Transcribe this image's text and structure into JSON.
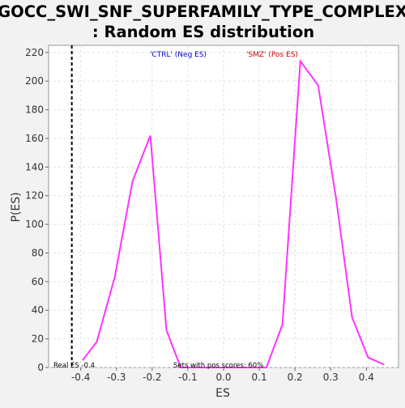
{
  "chart_data": {
    "type": "line",
    "title": "GOCC_SWI_SNF_SUPERFAMILY_TYPE_COMPLEX",
    "subtitle": ": Random ES distribution",
    "xlabel": "ES",
    "ylabel": "P(ES)",
    "xlim": [
      -0.49,
      0.49
    ],
    "ylim": [
      0,
      225
    ],
    "x_ticks": [
      -0.4,
      -0.3,
      -0.2,
      -0.1,
      0.0,
      0.1,
      0.2,
      0.3,
      0.4
    ],
    "x_tick_labels": [
      "-0.4",
      "-0.3",
      "-0.2",
      "-0.1",
      "0.0",
      "0.1",
      "0.2",
      "0.3",
      "0.4"
    ],
    "y_ticks": [
      0,
      20,
      40,
      60,
      80,
      100,
      120,
      140,
      160,
      180,
      200,
      220
    ],
    "y_tick_labels": [
      "0",
      "20",
      "40",
      "60",
      "80",
      "100",
      "120",
      "140",
      "160",
      "180",
      "200",
      "220"
    ],
    "grid": true,
    "series": [
      {
        "color": "#ff33ff",
        "x": [
          -0.395,
          -0.355,
          -0.305,
          -0.255,
          -0.205,
          -0.16,
          -0.12,
          -0.08,
          0.12,
          0.165,
          0.215,
          0.265,
          0.315,
          0.36,
          0.405,
          0.45
        ],
        "y": [
          5,
          18,
          63,
          130,
          162,
          26,
          0,
          0,
          0,
          30,
          214,
          197,
          118,
          35,
          7,
          2
        ]
      }
    ],
    "reference_line": {
      "x": -0.425,
      "style": "dashed",
      "color": "#000000"
    },
    "legend": [
      {
        "label": "'CTRL' (Neg ES)",
        "color": "#0000cc"
      },
      {
        "label": "'SMZ' (Pos ES)",
        "color": "#cc0000"
      }
    ],
    "annotations": {
      "real_es": "Real ES -0.4",
      "pos_sets": "Sets with pos scores: 60%"
    }
  }
}
